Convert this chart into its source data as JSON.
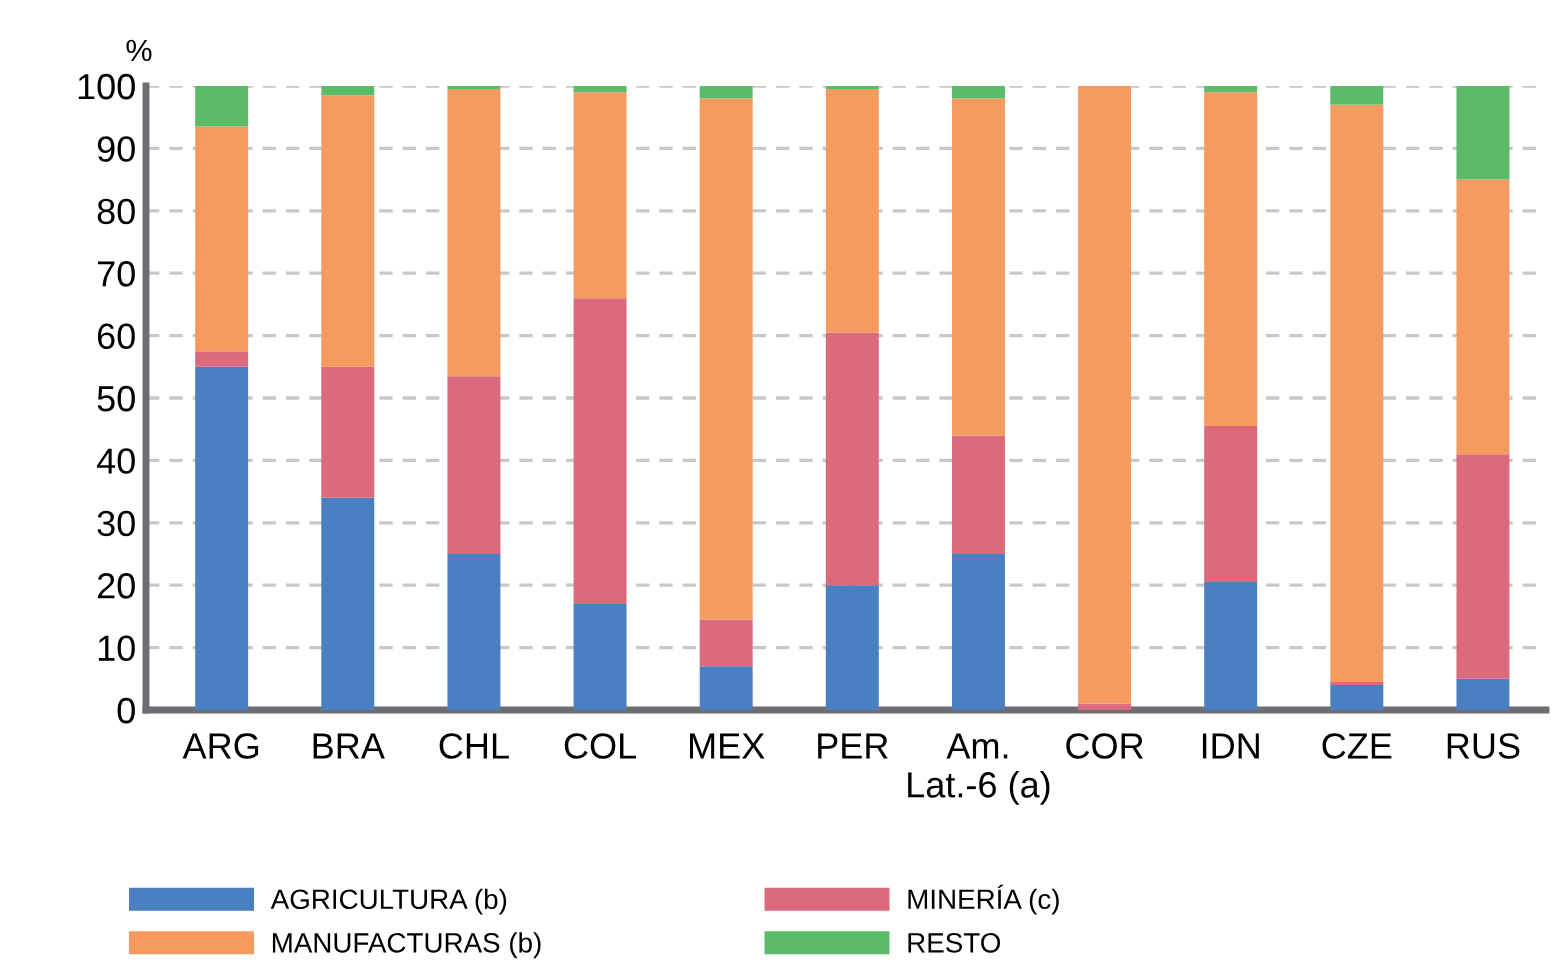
{
  "chart_data": {
    "type": "bar",
    "stacked": true,
    "ylabel": "%",
    "categories": [
      "ARG",
      "BRA",
      "CHL",
      "COL",
      "MEX",
      "PER",
      "Am.\nLat.-6 (a)",
      "COR",
      "IDN",
      "CZE",
      "RUS"
    ],
    "series": [
      {
        "name": "AGRICULTURA (b)",
        "color": "#4a7fc1",
        "values": [
          55,
          34,
          25,
          17,
          7,
          20,
          25,
          0,
          20.5,
          4,
          5
        ]
      },
      {
        "name": "MINERÍA (c)",
        "color": "#db6b7c",
        "values": [
          2.5,
          21,
          28.5,
          49,
          7.5,
          40.5,
          19,
          1,
          25,
          0.5,
          36
        ]
      },
      {
        "name": "MANUFACTURAS (b)",
        "color": "#f59b60",
        "values": [
          36,
          43.5,
          46,
          33,
          83.5,
          39,
          54,
          99,
          53.5,
          92.5,
          44
        ]
      },
      {
        "name": "RESTO",
        "color": "#5cbb68",
        "values": [
          6.5,
          1.5,
          0.5,
          1,
          2,
          0.5,
          2,
          0,
          1,
          3,
          15
        ]
      }
    ],
    "ylim": [
      0,
      100
    ],
    "yticks": [
      0,
      10,
      20,
      30,
      40,
      50,
      60,
      70,
      80,
      90,
      100
    ],
    "grid": "y",
    "legend": "bottom"
  }
}
